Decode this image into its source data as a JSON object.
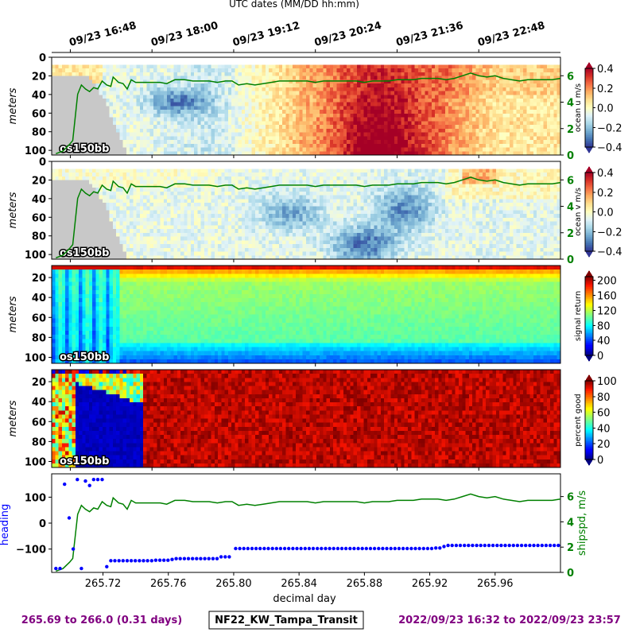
{
  "top_axis": {
    "label": "UTC dates (MM/DD hh:mm)",
    "ticks": [
      "09/23 16:48",
      "09/23 18:00",
      "09/23 19:12",
      "09/23 20:24",
      "09/23 21:36",
      "09/23 22:48"
    ],
    "tick_days": [
      265.7,
      265.75,
      265.8,
      265.85,
      265.9,
      265.95
    ]
  },
  "footer": {
    "left": "265.69 to 266.0 (0.31 days)",
    "center": "NF22_KW_Tampa_Transit",
    "right": "2022/09/23 16:32 to 2022/09/23 23:57",
    "color": "#800080"
  },
  "chart_data": [
    {
      "type": "heatmap",
      "ylabel": "meters",
      "yticks": [
        0,
        20,
        40,
        60,
        80,
        100
      ],
      "ylim": [
        105,
        0
      ],
      "xlim": [
        265.6886,
        266.0
      ],
      "instrument_label": "os150bb",
      "variable": "u",
      "colorbar": {
        "label": "ocean u m/s",
        "min": -0.4,
        "max": 0.4,
        "ticks": [
          "0.4",
          "0.2",
          "0.0",
          "−0.2",
          "−0.4"
        ],
        "cmap": "RdYlBu_r"
      },
      "right_axis": {
        "label": "",
        "ticks": [
          "0",
          "2",
          "4",
          "6"
        ],
        "ylim": [
          0,
          7.4
        ],
        "color": "#008000"
      }
    },
    {
      "type": "heatmap",
      "ylabel": "meters",
      "yticks": [
        0,
        20,
        40,
        60,
        80,
        100
      ],
      "ylim": [
        105,
        0
      ],
      "xlim": [
        265.6886,
        266.0
      ],
      "instrument_label": "os150bb",
      "variable": "v",
      "colorbar": {
        "label": "ocean v m/s",
        "min": -0.4,
        "max": 0.4,
        "ticks": [
          "0.4",
          "0.2",
          "0.0",
          "−0.2",
          "−0.4"
        ],
        "cmap": "RdYlBu_r"
      },
      "right_axis": {
        "label": "",
        "ticks": [
          "0",
          "2",
          "4",
          "6"
        ],
        "ylim": [
          0,
          7.4
        ],
        "color": "#008000"
      }
    },
    {
      "type": "heatmap",
      "ylabel": "meters",
      "yticks": [
        20,
        40,
        60,
        80,
        100
      ],
      "ylim": [
        106,
        8
      ],
      "xlim": [
        265.6886,
        266.0
      ],
      "instrument_label": "os150bb",
      "variable": "amp",
      "colorbar": {
        "label": "signal return",
        "min": 0,
        "max": 210,
        "ticks": [
          "200",
          "160",
          "120",
          "80",
          "40",
          "0"
        ],
        "cmap": "jet"
      }
    },
    {
      "type": "heatmap",
      "ylabel": "meters",
      "yticks": [
        20,
        40,
        60,
        80,
        100
      ],
      "ylim": [
        106,
        8
      ],
      "xlim": [
        265.6886,
        266.0
      ],
      "instrument_label": "os150bb",
      "variable": "pg",
      "colorbar": {
        "label": "percent good",
        "min": 0,
        "max": 100,
        "ticks": [
          "100",
          "80",
          "60",
          "40",
          "20",
          "0"
        ],
        "cmap": "jet"
      }
    },
    {
      "type": "scatter",
      "xlabel": "decimal day",
      "xticks": [
        "265.72",
        "265.76",
        "265.80",
        "265.84",
        "265.88",
        "265.92",
        "265.96"
      ],
      "xtick_values": [
        265.72,
        265.76,
        265.8,
        265.84,
        265.88,
        265.92,
        265.96
      ],
      "xlim": [
        265.6886,
        266.0
      ],
      "ylabel": "heading",
      "yticks": [
        "100",
        "0",
        "−100"
      ],
      "ytick_values": [
        100,
        0,
        -100
      ],
      "ylim": [
        -190,
        190
      ],
      "ylabel_color": "#0000ff",
      "y2label": "shipspd, m/s",
      "y2ticks": [
        "0",
        "2",
        "4",
        "6"
      ],
      "y2tick_values": [
        0,
        2,
        4,
        6
      ],
      "y2lim": [
        0,
        7.8
      ],
      "y2_color": "#008000",
      "series": [
        {
          "variable": "heading",
          "color": "#0000ff",
          "x": [
            265.6912,
            265.6937,
            265.6965,
            265.6993,
            265.7018,
            265.7043,
            265.7068,
            265.7093,
            265.7118,
            265.7143,
            265.7168,
            265.7195,
            265.7223,
            265.7248,
            265.7273,
            265.7298,
            265.7323,
            265.7348,
            265.7373,
            265.7398,
            265.7423,
            265.7448,
            265.7473,
            265.7498,
            265.7523,
            265.7548,
            265.7573,
            265.7598,
            265.7623,
            265.7648,
            265.7673,
            265.7698,
            265.7723,
            265.7748,
            265.7773,
            265.7798,
            265.7823,
            265.7848,
            265.7873,
            265.7898,
            265.7923,
            265.7948,
            265.7973,
            265.8012,
            265.8037,
            265.8062,
            265.8087,
            265.8112,
            265.8137,
            265.8162,
            265.8187,
            265.8212,
            265.8237,
            265.8262,
            265.8287,
            265.8312,
            265.8337,
            265.8362,
            265.8387,
            265.8412,
            265.8437,
            265.8462,
            265.8487,
            265.8512,
            265.8537,
            265.8562,
            265.8587,
            265.8612,
            265.8637,
            265.8662,
            265.8687,
            265.8712,
            265.8737,
            265.8762,
            265.8787,
            265.8812,
            265.8837,
            265.8862,
            265.8887,
            265.8912,
            265.8937,
            265.8962,
            265.8987,
            265.9012,
            265.9037,
            265.9062,
            265.9087,
            265.9112,
            265.9137,
            265.9162,
            265.9187,
            265.9212,
            265.9237,
            265.9262,
            265.9287,
            265.9312,
            265.9337,
            265.9362,
            265.9387,
            265.9412,
            265.9437,
            265.9462,
            265.9487,
            265.9512,
            265.9537,
            265.9562,
            265.9587,
            265.9612,
            265.9637,
            265.9662,
            265.9687,
            265.9712,
            265.9737,
            265.9762,
            265.9787,
            265.9812,
            265.9837,
            265.9862,
            265.9887,
            265.9912,
            265.9937,
            265.9962,
            265.9987
          ],
          "y": [
            -175,
            -175,
            150,
            20,
            -100,
            168,
            -175,
            162,
            145,
            168,
            168,
            168,
            -168,
            -145,
            -145,
            -145,
            -145,
            -145,
            -145,
            -145,
            -145,
            -145,
            -145,
            -145,
            -143,
            -143,
            -143,
            -143,
            -140,
            -137,
            -137,
            -137,
            -137,
            -137,
            -137,
            -137,
            -137,
            -137,
            -137,
            -137,
            -130,
            -130,
            -130,
            -98,
            -98,
            -98,
            -98,
            -98,
            -98,
            -98,
            -98,
            -98,
            -98,
            -98,
            -98,
            -98,
            -98,
            -98,
            -98,
            -98,
            -98,
            -98,
            -98,
            -98,
            -98,
            -98,
            -98,
            -98,
            -98,
            -98,
            -98,
            -98,
            -98,
            -98,
            -98,
            -98,
            -98,
            -98,
            -98,
            -98,
            -98,
            -98,
            -98,
            -98,
            -98,
            -98,
            -98,
            -98,
            -98,
            -98,
            -98,
            -98,
            -96,
            -96,
            -90,
            -86,
            -86,
            -86,
            -86,
            -86,
            -86,
            -86,
            -86,
            -86,
            -86,
            -86,
            -86,
            -86,
            -86,
            -86,
            -86,
            -86,
            -86,
            -86,
            -86,
            -86,
            -86,
            -86,
            -86,
            -86,
            -86,
            -86,
            -86
          ]
        },
        {
          "variable": "shipspd",
          "color": "#008000",
          "x": [
            265.6912,
            265.6955,
            265.6995,
            265.7015,
            265.7045,
            265.7068,
            265.7093,
            265.7118,
            265.7143,
            265.7168,
            265.7195,
            265.7223,
            265.7248,
            265.7262,
            265.7295,
            265.7323,
            265.7348,
            265.7373,
            265.74,
            265.745,
            265.75,
            265.755,
            265.759,
            265.764,
            265.77,
            265.775,
            265.78,
            265.785,
            265.79,
            265.795,
            265.799,
            265.803,
            265.808,
            265.813,
            265.818,
            265.823,
            265.828,
            265.833,
            265.84,
            265.845,
            265.85,
            265.855,
            265.86,
            265.865,
            265.87,
            265.875,
            265.88,
            265.885,
            265.89,
            265.895,
            265.9,
            265.905,
            265.91,
            265.915,
            265.92,
            265.925,
            265.93,
            265.935,
            265.94,
            265.945,
            265.95,
            265.955,
            265.96,
            265.965,
            265.97,
            265.975,
            265.98,
            265.985,
            265.99,
            265.995,
            266.0
          ],
          "y": [
            0.1,
            0.3,
            0.8,
            1.1,
            4.6,
            5.3,
            5.0,
            4.8,
            5.1,
            5.0,
            5.6,
            5.3,
            5.2,
            5.9,
            5.5,
            5.4,
            5.0,
            5.7,
            5.5,
            5.5,
            5.5,
            5.5,
            5.4,
            5.7,
            5.7,
            5.6,
            5.6,
            5.6,
            5.5,
            5.6,
            5.6,
            5.3,
            5.4,
            5.3,
            5.4,
            5.5,
            5.6,
            5.6,
            5.6,
            5.6,
            5.5,
            5.6,
            5.6,
            5.6,
            5.6,
            5.6,
            5.5,
            5.6,
            5.6,
            5.6,
            5.7,
            5.7,
            5.7,
            5.8,
            5.8,
            5.8,
            5.7,
            5.8,
            6.0,
            6.2,
            6.0,
            5.9,
            6.0,
            5.8,
            5.7,
            5.6,
            5.7,
            5.7,
            5.7,
            5.7,
            5.8
          ]
        }
      ]
    }
  ]
}
